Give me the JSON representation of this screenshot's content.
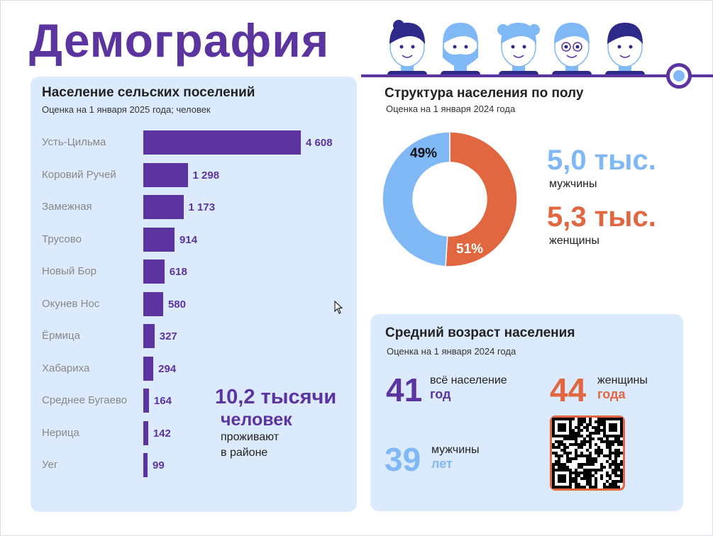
{
  "title": "Демография",
  "colors": {
    "purple": "#5b34a0",
    "blue": "#7fb8f5",
    "orange": "#e0673f",
    "panel": "#dbeafc"
  },
  "rural": {
    "heading": "Население сельских поселений",
    "subtitle": "Оценка на 1 января 2025 года; человек",
    "total_value": "10,2 тысячи",
    "total_unit": "человек",
    "total_note1": "проживают",
    "total_note2": "в районе"
  },
  "chart_data": {
    "type": "bar",
    "title": "Население сельских поселений",
    "categories": [
      "Усть-Цильма",
      "Коровий Ручей",
      "Замежная",
      "Трусово",
      "Новый Бор",
      "Окунев Нос",
      "Ёрмица",
      "Хабариха",
      "Среднее Бугаево",
      "Нерица",
      "Уег"
    ],
    "values": [
      4608,
      1298,
      1173,
      914,
      618,
      580,
      327,
      294,
      164,
      142,
      99
    ],
    "labels": [
      "4 608",
      "1 298",
      "1 173",
      "914",
      "618",
      "580",
      "327",
      "294",
      "164",
      "142",
      "99"
    ]
  },
  "gender": {
    "heading": "Структура населения по полу",
    "subtitle": "Оценка на 1 января 2024 года",
    "male_pct": 49,
    "female_pct": 51,
    "male_pct_label": "49%",
    "female_pct_label": "51%",
    "male_value": "5,0 тыс.",
    "male_label": "мужчины",
    "female_value": "5,3 тыс.",
    "female_label": "женщины"
  },
  "age": {
    "heading": "Средний возраст населения",
    "subtitle": "Оценка на 1 января 2024 года",
    "all_value": "41",
    "all_label": "всё население",
    "all_unit": "год",
    "female_value": "44",
    "female_label": "женщины",
    "female_unit": "года",
    "male_value": "39",
    "male_label": "мужчины",
    "male_unit": "лет"
  }
}
